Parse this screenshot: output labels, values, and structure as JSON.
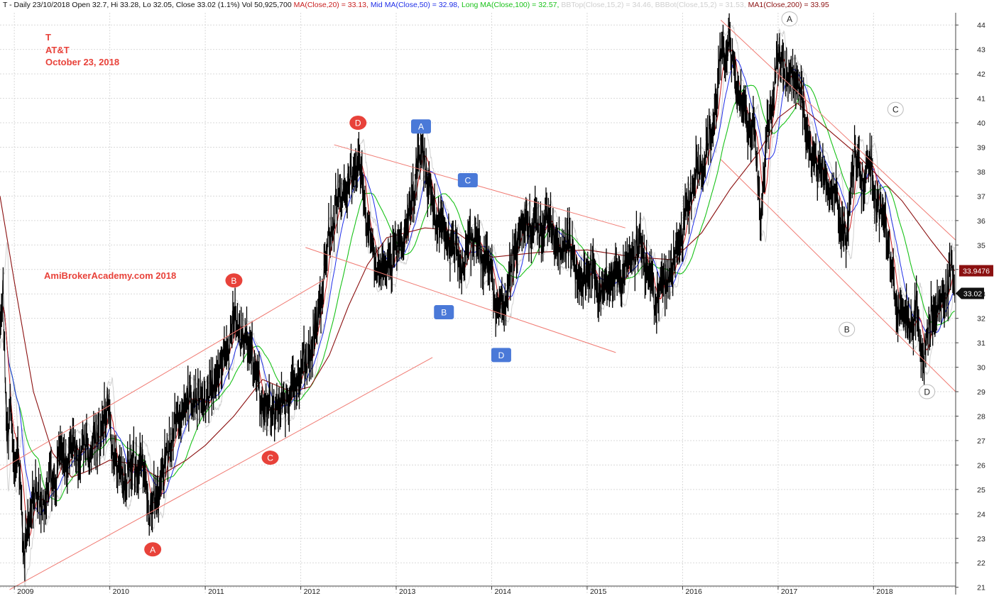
{
  "chart_data": {
    "type": "line",
    "header": {
      "prefix": "T - Daily 23/10/2018 Open 32.7, Hi 33.28, Lo 32.05, Close 33.02 (1.1%) Vol 50,925,700",
      "items": [
        {
          "text": "MA(Close,20) = 33.13",
          "color": "#c81e1e"
        },
        {
          "text": "Mid MA(Close,50) = 32.98",
          "color": "#1f2ee8"
        },
        {
          "text": "Long MA(Close,100) = 32.57",
          "color": "#19c219"
        },
        {
          "text": "BBTop(Close,15,2) = 34.46",
          "color": "#cfcfcf"
        },
        {
          "text": "BBBot(Close,15,2) = 31.53",
          "color": "#cfcfcf"
        },
        {
          "text": "MA1(Close,200) = 33.95",
          "color": "#8b1010"
        }
      ]
    },
    "annotations": {
      "symbol": "T",
      "company": "AT&T",
      "date": "October 23, 2018",
      "watermark": "AmiBrokerAcademy.com 2018"
    },
    "ylim": [
      20.7,
      44.5
    ],
    "y_ticks": [
      21,
      22,
      23,
      24,
      25,
      26,
      27,
      28,
      29,
      30,
      31,
      32,
      33,
      34,
      35,
      36,
      37,
      38,
      39,
      40,
      41,
      42,
      43,
      44
    ],
    "xlim": [
      2008.85,
      2018.86
    ],
    "x_ticks": [
      {
        "year": 2009,
        "label": "2009"
      },
      {
        "year": 2010,
        "label": "2010"
      },
      {
        "year": 2011,
        "label": "2011"
      },
      {
        "year": 2012,
        "label": "2012"
      },
      {
        "year": 2013,
        "label": "2013"
      },
      {
        "year": 2014,
        "label": "2014"
      },
      {
        "year": 2015,
        "label": "2015"
      },
      {
        "year": 2016,
        "label": "2016"
      },
      {
        "year": 2017,
        "label": "2017"
      },
      {
        "year": 2018,
        "label": "2018"
      }
    ],
    "price_keypoints": [
      [
        2008.85,
        31.5
      ],
      [
        2008.88,
        33.3
      ],
      [
        2008.92,
        27.0
      ],
      [
        2008.96,
        28.5
      ],
      [
        2009.0,
        25.5
      ],
      [
        2009.05,
        26.5
      ],
      [
        2009.1,
        22.0
      ],
      [
        2009.15,
        23.5
      ],
      [
        2009.2,
        25.0
      ],
      [
        2009.3,
        24.5
      ],
      [
        2009.45,
        26.0
      ],
      [
        2009.6,
        26.5
      ],
      [
        2009.75,
        26.8
      ],
      [
        2009.9,
        27.0
      ],
      [
        2009.98,
        28.5
      ],
      [
        2010.05,
        26.0
      ],
      [
        2010.15,
        25.2
      ],
      [
        2010.25,
        26.3
      ],
      [
        2010.35,
        25.8
      ],
      [
        2010.42,
        24.2
      ],
      [
        2010.5,
        24.5
      ],
      [
        2010.6,
        26.5
      ],
      [
        2010.75,
        28.3
      ],
      [
        2010.9,
        28.8
      ],
      [
        2011.0,
        28.6
      ],
      [
        2011.1,
        29.2
      ],
      [
        2011.2,
        30.5
      ],
      [
        2011.3,
        31.8
      ],
      [
        2011.4,
        31.2
      ],
      [
        2011.5,
        30.5
      ],
      [
        2011.6,
        28.2
      ],
      [
        2011.7,
        28.0
      ],
      [
        2011.8,
        28.5
      ],
      [
        2011.9,
        28.8
      ],
      [
        2012.0,
        29.8
      ],
      [
        2012.1,
        30.5
      ],
      [
        2012.2,
        32.5
      ],
      [
        2012.3,
        35.5
      ],
      [
        2012.4,
        37.0
      ],
      [
        2012.5,
        37.5
      ],
      [
        2012.6,
        38.5
      ],
      [
        2012.7,
        35.8
      ],
      [
        2012.8,
        33.8
      ],
      [
        2012.9,
        34.2
      ],
      [
        2013.0,
        34.8
      ],
      [
        2013.1,
        35.5
      ],
      [
        2013.2,
        37.8
      ],
      [
        2013.28,
        38.8
      ],
      [
        2013.38,
        36.5
      ],
      [
        2013.5,
        35.5
      ],
      [
        2013.6,
        35.0
      ],
      [
        2013.7,
        34.0
      ],
      [
        2013.8,
        35.5
      ],
      [
        2013.9,
        34.5
      ],
      [
        2014.0,
        33.8
      ],
      [
        2014.05,
        32.2
      ],
      [
        2014.15,
        33.0
      ],
      [
        2014.25,
        35.0
      ],
      [
        2014.35,
        36.0
      ],
      [
        2014.5,
        35.5
      ],
      [
        2014.6,
        36.2
      ],
      [
        2014.7,
        34.5
      ],
      [
        2014.8,
        35.0
      ],
      [
        2014.95,
        33.5
      ],
      [
        2015.05,
        34.0
      ],
      [
        2015.15,
        33.0
      ],
      [
        2015.25,
        34.0
      ],
      [
        2015.35,
        33.5
      ],
      [
        2015.45,
        34.5
      ],
      [
        2015.55,
        35.0
      ],
      [
        2015.62,
        34.2
      ],
      [
        2015.7,
        32.8
      ],
      [
        2015.8,
        33.5
      ],
      [
        2015.9,
        34.0
      ],
      [
        2016.0,
        35.5
      ],
      [
        2016.1,
        37.5
      ],
      [
        2016.2,
        38.5
      ],
      [
        2016.3,
        39.5
      ],
      [
        2016.4,
        42.5
      ],
      [
        2016.48,
        43.5
      ],
      [
        2016.55,
        41.5
      ],
      [
        2016.65,
        40.5
      ],
      [
        2016.75,
        39.5
      ],
      [
        2016.82,
        36.2
      ],
      [
        2016.9,
        40.0
      ],
      [
        2017.0,
        42.8
      ],
      [
        2017.1,
        41.5
      ],
      [
        2017.2,
        42.0
      ],
      [
        2017.28,
        40.0
      ],
      [
        2017.35,
        38.5
      ],
      [
        2017.45,
        38.0
      ],
      [
        2017.55,
        37.5
      ],
      [
        2017.65,
        36.5
      ],
      [
        2017.72,
        35.0
      ],
      [
        2017.8,
        39.2
      ],
      [
        2017.88,
        37.5
      ],
      [
        2017.95,
        38.5
      ],
      [
        2018.05,
        36.5
      ],
      [
        2018.15,
        35.5
      ],
      [
        2018.22,
        33.0
      ],
      [
        2018.3,
        32.0
      ],
      [
        2018.38,
        31.5
      ],
      [
        2018.45,
        32.3
      ],
      [
        2018.52,
        30.3
      ],
      [
        2018.6,
        32.0
      ],
      [
        2018.7,
        32.5
      ],
      [
        2018.78,
        33.5
      ],
      [
        2018.82,
        34.0
      ],
      [
        2018.85,
        33.0
      ]
    ],
    "ma200_keypoints": [
      [
        2008.85,
        37.0
      ],
      [
        2009.0,
        33.5
      ],
      [
        2009.2,
        29.0
      ],
      [
        2009.4,
        26.5
      ],
      [
        2009.6,
        25.5
      ],
      [
        2009.8,
        25.8
      ],
      [
        2010.0,
        26.2
      ],
      [
        2010.3,
        26.0
      ],
      [
        2010.5,
        25.5
      ],
      [
        2010.8,
        26.2
      ],
      [
        2011.0,
        26.8
      ],
      [
        2011.3,
        28.0
      ],
      [
        2011.6,
        29.5
      ],
      [
        2011.9,
        29.0
      ],
      [
        2012.1,
        29.2
      ],
      [
        2012.3,
        30.5
      ],
      [
        2012.5,
        32.5
      ],
      [
        2012.7,
        34.2
      ],
      [
        2012.9,
        35.3
      ],
      [
        2013.3,
        35.7
      ],
      [
        2013.6,
        35.6
      ],
      [
        2014.0,
        34.5
      ],
      [
        2014.5,
        34.7
      ],
      [
        2015.0,
        34.8
      ],
      [
        2015.5,
        34.5
      ],
      [
        2015.9,
        34.4
      ],
      [
        2016.2,
        35.5
      ],
      [
        2016.5,
        37.3
      ],
      [
        2016.8,
        38.8
      ],
      [
        2017.0,
        40.2
      ],
      [
        2017.2,
        40.8
      ],
      [
        2017.5,
        39.8
      ],
      [
        2017.8,
        38.8
      ],
      [
        2018.0,
        38.0
      ],
      [
        2018.3,
        36.8
      ],
      [
        2018.6,
        35.2
      ],
      [
        2018.85,
        33.95
      ]
    ],
    "trend_lines": [
      {
        "x1": 2008.85,
        "y1": 25.8,
        "x2": 2012.25,
        "y2": 33.6
      },
      {
        "x1": 2008.95,
        "y1": 20.9,
        "x2": 2013.38,
        "y2": 30.4
      },
      {
        "x1": 2012.35,
        "y1": 39.1,
        "x2": 2015.4,
        "y2": 35.7
      },
      {
        "x1": 2012.05,
        "y1": 34.9,
        "x2": 2015.3,
        "y2": 30.6
      },
      {
        "x1": 2016.4,
        "y1": 44.2,
        "x2": 2018.86,
        "y2": 35.2
      },
      {
        "x1": 2016.4,
        "y1": 38.5,
        "x2": 2018.86,
        "y2": 29.0
      }
    ],
    "last_close": "33.02",
    "ma200_last": "33.9476",
    "pattern_labels": [
      {
        "text": "A",
        "style": "red",
        "x": 2010.45,
        "y": 22.55
      },
      {
        "text": "B",
        "style": "red",
        "x": 2011.3,
        "y": 33.55
      },
      {
        "text": "C",
        "style": "red",
        "x": 2011.68,
        "y": 26.3
      },
      {
        "text": "D",
        "style": "red",
        "x": 2012.6,
        "y": 40.0
      },
      {
        "text": "A",
        "style": "blue",
        "x": 2013.26,
        "y": 39.85
      },
      {
        "text": "B",
        "style": "blue",
        "x": 2013.5,
        "y": 32.25
      },
      {
        "text": "C",
        "style": "blue",
        "x": 2013.75,
        "y": 37.65
      },
      {
        "text": "D",
        "style": "blue",
        "x": 2014.1,
        "y": 30.5
      },
      {
        "text": "A",
        "style": "white",
        "x": 2017.12,
        "y": 44.25
      },
      {
        "text": "B",
        "style": "white",
        "x": 2017.72,
        "y": 31.55
      },
      {
        "text": "C",
        "style": "white",
        "x": 2018.23,
        "y": 40.55
      },
      {
        "text": "D",
        "style": "white",
        "x": 2018.56,
        "y": 29.0
      }
    ],
    "colors": {
      "price": "#000000",
      "ma20": "#c81e1e",
      "ma50": "#1f2ee8",
      "ma100": "#19c219",
      "bb": "#d2d2d2",
      "ma200": "#8b1010",
      "trend": "#f07a72",
      "grid": "#d9d9d9",
      "red_label": "#e8423a",
      "blue_label": "#4a79d8"
    }
  }
}
